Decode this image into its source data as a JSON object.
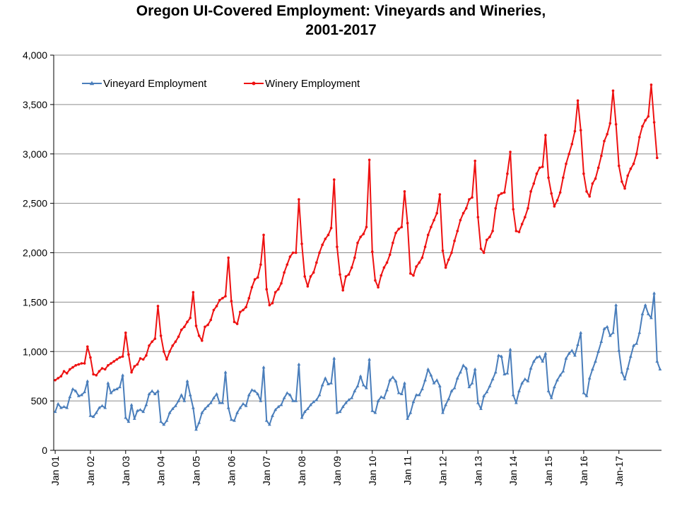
{
  "chart_data": {
    "type": "line",
    "title_line1": "Oregon UI-Covered Employment: Vineyards and Wineries,",
    "title_line2": "2001-2017",
    "ylim": [
      0,
      4000
    ],
    "y_ticks": [
      "0",
      "500",
      "1,000",
      "1,500",
      "2,000",
      "2,500",
      "3,000",
      "3,500",
      "4,000"
    ],
    "y_tick_values": [
      0,
      500,
      1000,
      1500,
      2000,
      2500,
      3000,
      3500,
      4000
    ],
    "x_start": "Jan 01",
    "x_end": "Dec 17",
    "x_ticks": [
      "Jan 01",
      "Jan 02",
      "Jan 03",
      "Jan 04",
      "Jan 05",
      "Jan 06",
      "Jan 07",
      "Jan 08",
      "Jan 09",
      "Jan 10",
      "Jan 11",
      "Jan 12",
      "Jan 13",
      "Jan 14",
      "Jan 15",
      "Jan 16",
      "Jan-17"
    ],
    "grid": true,
    "legend": "top-left",
    "series": [
      {
        "name": "Vineyard Employment",
        "color": "#4a7ebb",
        "marker": "triangle",
        "values": [
          390,
          470,
          430,
          440,
          430,
          540,
          620,
          600,
          550,
          560,
          590,
          700,
          350,
          340,
          380,
          430,
          450,
          430,
          680,
          580,
          610,
          620,
          640,
          760,
          330,
          290,
          460,
          320,
          400,
          410,
          390,
          460,
          570,
          600,
          570,
          600,
          290,
          260,
          300,
          380,
          420,
          450,
          500,
          560,
          500,
          700,
          560,
          430,
          210,
          280,
          380,
          420,
          450,
          480,
          530,
          570,
          480,
          480,
          790,
          430,
          310,
          300,
          380,
          430,
          470,
          450,
          560,
          610,
          600,
          570,
          500,
          840,
          300,
          260,
          350,
          410,
          440,
          460,
          530,
          580,
          560,
          500,
          500,
          870,
          330,
          390,
          420,
          460,
          490,
          510,
          560,
          660,
          730,
          670,
          680,
          930,
          380,
          390,
          440,
          480,
          510,
          530,
          600,
          650,
          750,
          660,
          630,
          920,
          400,
          380,
          500,
          540,
          530,
          610,
          710,
          740,
          700,
          580,
          570,
          680,
          320,
          380,
          490,
          560,
          560,
          620,
          710,
          820,
          760,
          680,
          710,
          650,
          380,
          460,
          520,
          600,
          630,
          730,
          790,
          860,
          830,
          640,
          680,
          820,
          480,
          420,
          550,
          590,
          650,
          720,
          790,
          960,
          950,
          770,
          780,
          1020,
          560,
          480,
          600,
          680,
          720,
          700,
          830,
          900,
          940,
          950,
          900,
          980,
          600,
          530,
          640,
          710,
          760,
          800,
          930,
          980,
          1010,
          960,
          1070,
          1190,
          580,
          550,
          730,
          820,
          900,
          1000,
          1100,
          1230,
          1250,
          1160,
          1190,
          1470,
          1010,
          790,
          720,
          830,
          950,
          1060,
          1080,
          1190,
          1380,
          1470,
          1380,
          1340,
          1590,
          900,
          820
        ]
      },
      {
        "name": "Winery Employment",
        "color": "#ee1111",
        "marker": "circle",
        "values": [
          710,
          730,
          750,
          800,
          780,
          820,
          840,
          860,
          870,
          880,
          880,
          1050,
          940,
          770,
          760,
          800,
          830,
          820,
          860,
          880,
          900,
          920,
          940,
          950,
          1190,
          970,
          790,
          850,
          870,
          930,
          920,
          960,
          1060,
          1100,
          1130,
          1460,
          1160,
          1000,
          920,
          1000,
          1060,
          1100,
          1150,
          1220,
          1250,
          1300,
          1340,
          1600,
          1260,
          1160,
          1110,
          1250,
          1270,
          1320,
          1420,
          1460,
          1520,
          1540,
          1560,
          1950,
          1510,
          1300,
          1280,
          1400,
          1420,
          1450,
          1540,
          1650,
          1730,
          1750,
          1880,
          2180,
          1630,
          1470,
          1490,
          1600,
          1630,
          1690,
          1800,
          1880,
          1960,
          2000,
          2000,
          2540,
          2090,
          1760,
          1660,
          1760,
          1800,
          1900,
          2000,
          2080,
          2140,
          2180,
          2250,
          2740,
          2060,
          1780,
          1620,
          1760,
          1780,
          1850,
          1950,
          2100,
          2160,
          2190,
          2260,
          2940,
          2010,
          1720,
          1650,
          1770,
          1850,
          1900,
          1980,
          2100,
          2200,
          2240,
          2260,
          2620,
          2300,
          1790,
          1770,
          1860,
          1900,
          1950,
          2060,
          2180,
          2260,
          2330,
          2400,
          2590,
          2020,
          1850,
          1930,
          2000,
          2120,
          2220,
          2330,
          2400,
          2450,
          2540,
          2560,
          2930,
          2360,
          2040,
          2000,
          2130,
          2160,
          2220,
          2450,
          2580,
          2600,
          2610,
          2800,
          3020,
          2440,
          2220,
          2210,
          2290,
          2360,
          2450,
          2620,
          2700,
          2800,
          2860,
          2870,
          3190,
          2760,
          2600,
          2470,
          2530,
          2610,
          2760,
          2900,
          3000,
          3100,
          3230,
          3540,
          3240,
          2800,
          2620,
          2570,
          2700,
          2750,
          2860,
          2980,
          3130,
          3200,
          3310,
          3640,
          3300,
          2880,
          2720,
          2650,
          2780,
          2850,
          2900,
          3000,
          3170,
          3280,
          3340,
          3380,
          3700,
          3320,
          2960
        ]
      }
    ]
  }
}
